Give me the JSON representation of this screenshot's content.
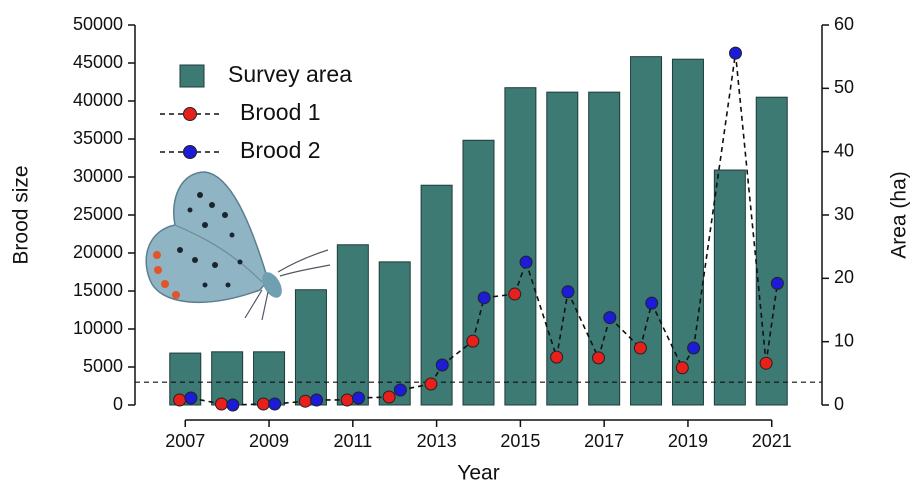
{
  "chart_data": {
    "type": "bar_dot",
    "x": [
      2007,
      2008,
      2009,
      2010,
      2011,
      2012,
      2013,
      2014,
      2015,
      2016,
      2017,
      2018,
      2019,
      2020,
      2021
    ],
    "xlim": [
      2005.8,
      2022.2
    ],
    "xticks": [
      2007,
      2009,
      2011,
      2013,
      2015,
      2017,
      2019,
      2021
    ],
    "xlabel": "Year",
    "ylabel": "Brood size",
    "y2label": "Area (ha)",
    "ylim": [
      0,
      50000
    ],
    "yticks": [
      0,
      5000,
      10000,
      15000,
      20000,
      25000,
      30000,
      35000,
      40000,
      45000,
      50000
    ],
    "y2lim": [
      0,
      60
    ],
    "y2ticks": [
      0,
      10,
      20,
      30,
      40,
      50,
      60
    ],
    "hline": 3000,
    "series": [
      {
        "name": "Survey area",
        "kind": "bar",
        "axis": "y2",
        "color": "#3e7a74",
        "values": [
          8.2,
          8.4,
          8.4,
          18.2,
          25.3,
          22.6,
          34.7,
          41.8,
          50.1,
          49.4,
          49.4,
          55.0,
          54.6,
          37.1,
          48.6
        ]
      },
      {
        "name": "Brood 1",
        "kind": "dot",
        "color": "#e8201c",
        "values": [
          660,
          130,
          130,
          500,
          660,
          1050,
          2760,
          8400,
          14600,
          6300,
          6200,
          7500,
          4900,
          null,
          5500
        ]
      },
      {
        "name": "Brood 2",
        "kind": "dot",
        "color": "#1c1cd8",
        "values": [
          920,
          0,
          130,
          660,
          920,
          1970,
          5260,
          14100,
          18800,
          14900,
          11500,
          13400,
          7500,
          46300,
          16000
        ]
      }
    ]
  }
}
